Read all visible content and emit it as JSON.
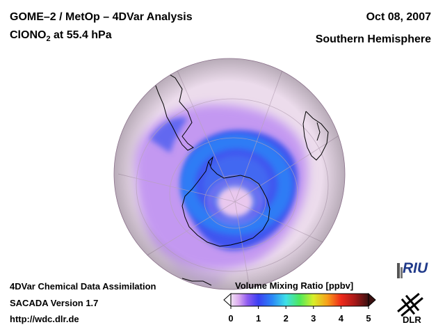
{
  "header": {
    "title": "GOME–2 / MetOp – 4DVar Analysis",
    "species_main": "ClONO",
    "species_sub": "2",
    "species_level": " at 55.4 hPa",
    "date": "Oct 08, 2007",
    "region": "Southern Hemisphere"
  },
  "footer": {
    "line1": "4DVar Chemical Data Assimilation",
    "line2": "SACADA Version 1.7",
    "line3": "http://wdc.dlr.de"
  },
  "colorbar": {
    "title": "Volume Mixing Ratio [ppbv]",
    "ticks": [
      "0",
      "1",
      "2",
      "3",
      "4",
      "5"
    ],
    "range": [
      0,
      5
    ]
  },
  "logos": {
    "riu": "RIU",
    "dlr": "DLR"
  },
  "colors": {
    "low": "#ecdcec",
    "band_purple": "#b27ff2",
    "band_blue": "#3a5af0",
    "ring_blue": "#2f6ff3",
    "coast": "#000000"
  }
}
